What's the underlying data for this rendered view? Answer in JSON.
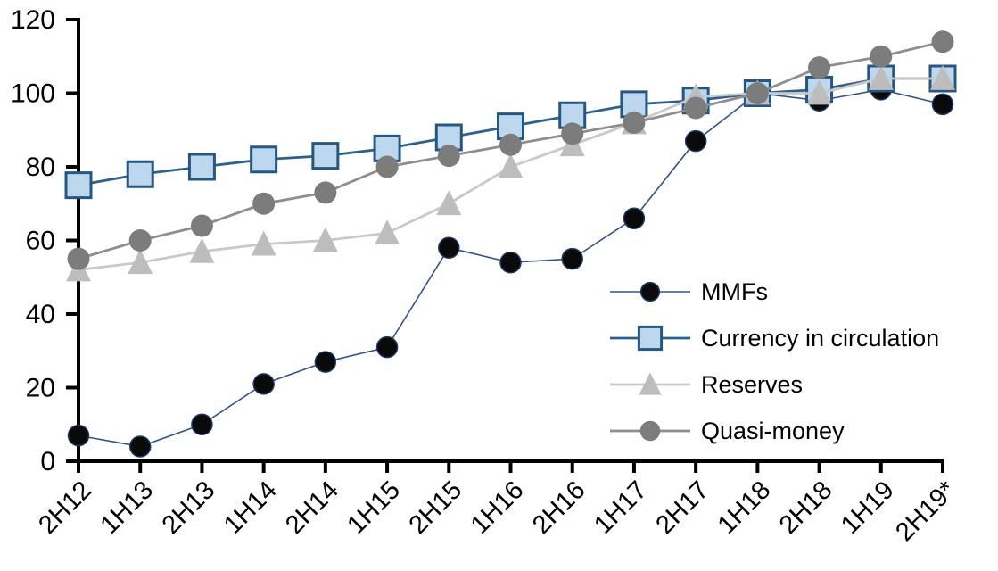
{
  "chart_data": {
    "type": "line",
    "title": "",
    "xlabel": "",
    "ylabel": "",
    "categories": [
      "2H12",
      "1H13",
      "2H13",
      "1H14",
      "2H14",
      "1H15",
      "2H15",
      "1H16",
      "2H16",
      "1H17",
      "2H17",
      "1H18",
      "2H18",
      "1H19",
      "2H19*"
    ],
    "series": [
      {
        "name": "MMFs",
        "marker": "circle",
        "values": [
          7,
          4,
          10,
          21,
          27,
          31,
          58,
          54,
          55,
          66,
          87,
          100,
          98,
          101,
          97
        ],
        "line_color": "#35518C",
        "line_width": 1.6,
        "marker_fill": "#0A0A0A",
        "marker_stroke": "#1F3864",
        "marker_stroke_width": 1.5,
        "marker_size": 23
      },
      {
        "name": "Currency in circulation",
        "marker": "square",
        "values": [
          75,
          78,
          80,
          82,
          83,
          85,
          88,
          91,
          94,
          97,
          98,
          100,
          101,
          104,
          104
        ],
        "line_color": "#2E608F",
        "line_width": 2.8,
        "marker_fill": "#BDD7EE",
        "marker_stroke": "#255781",
        "marker_stroke_width": 3,
        "marker_size": 28
      },
      {
        "name": "Reserves",
        "marker": "triangle",
        "values": [
          52,
          54,
          57,
          59,
          60,
          62,
          70,
          80,
          86,
          92,
          99,
          100,
          100,
          104,
          104
        ],
        "line_color": "#C9C9C9",
        "line_width": 2.8,
        "marker_fill": "#BDBDBD",
        "marker_stroke": "#BDBDBD",
        "marker_stroke_width": 0,
        "marker_size": 28
      },
      {
        "name": "Quasi-money",
        "marker": "circle",
        "values": [
          55,
          60,
          64,
          70,
          73,
          80,
          83,
          86,
          89,
          92,
          96,
          100,
          107,
          110,
          114
        ],
        "line_color": "#8E8E8E",
        "line_width": 2.8,
        "marker_fill": "#7C7C7C",
        "marker_stroke": "#7C7C7C",
        "marker_stroke_width": 0,
        "marker_size": 25
      }
    ],
    "ylim": [
      0,
      120
    ],
    "yticks": [
      0,
      20,
      40,
      60,
      80,
      100,
      120
    ],
    "grid": false,
    "legend_position": "inside-right",
    "axis_color": "#000000",
    "text_color": "#000000",
    "background": "#FFFFFF"
  }
}
